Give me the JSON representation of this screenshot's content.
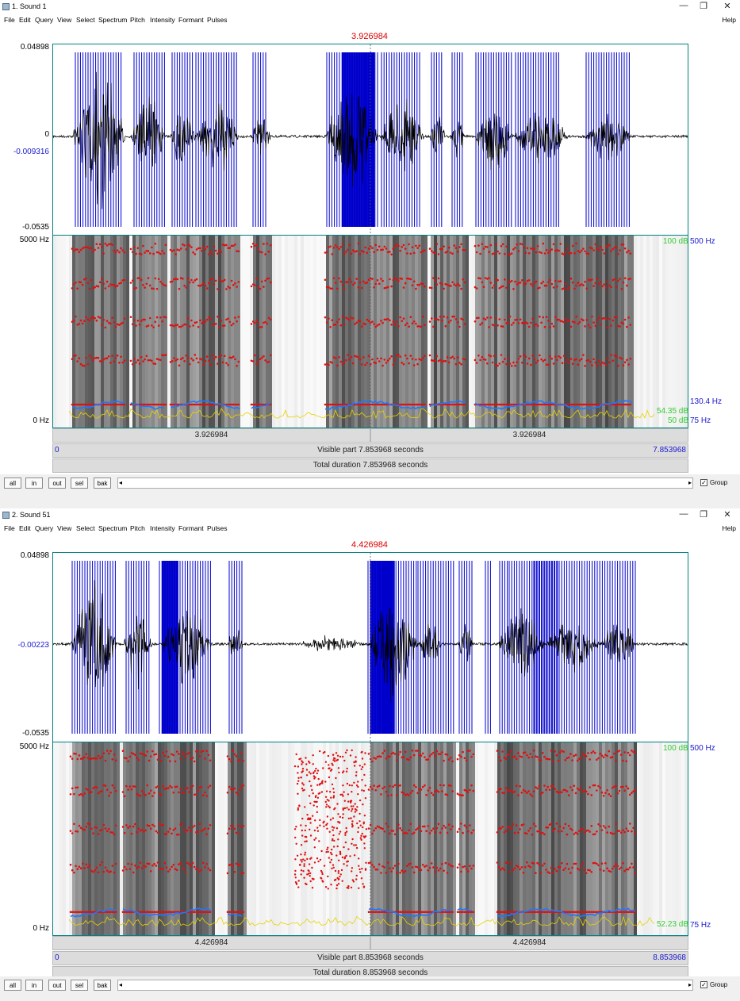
{
  "windows": [
    {
      "title": "1. Sound 1",
      "menu": [
        "File",
        "Edit",
        "Query",
        "View",
        "Select",
        "Spectrum",
        "Pitch",
        "Intensity",
        "Formant",
        "Pulses"
      ],
      "help": "Help",
      "cursor_time": "3.926984",
      "wave_top": "0.04898",
      "wave_zero": "0",
      "wave_cursor_val": "-0.009316",
      "wave_bottom": "-0.0535",
      "spec_top_hz": "5000 Hz",
      "spec_bottom_hz": "0 Hz",
      "intensity_top": "100 dB",
      "pitch_top": "500 Hz",
      "pitch_mid": "130.4 Hz",
      "intensity_mid": "54.35 dB",
      "intensity_bottom": "50 dB",
      "pitch_bottom": "75 Hz",
      "seg_left": "3.926984",
      "seg_right": "3.926984",
      "visible_start": "0",
      "visible_part": "Visible part 7.853968 seconds",
      "visible_end": "7.853968",
      "total_duration": "Total duration 7.853968 seconds"
    },
    {
      "title": "2. Sound 51",
      "menu": [
        "File",
        "Edit",
        "Query",
        "View",
        "Select",
        "Spectrum",
        "Pitch",
        "Intensity",
        "Formant",
        "Pulses"
      ],
      "help": "Help",
      "cursor_time": "4.426984",
      "wave_top": "0.04898",
      "wave_zero": "",
      "wave_cursor_val": "-0.00223",
      "wave_bottom": "-0.0535",
      "spec_top_hz": "5000 Hz",
      "spec_bottom_hz": "0 Hz",
      "intensity_top": "100 dB",
      "pitch_top": "500 Hz",
      "pitch_mid": "",
      "intensity_mid": "52.23 dB",
      "intensity_bottom": "",
      "pitch_bottom": "75 Hz",
      "seg_left": "4.426984",
      "seg_right": "4.426984",
      "visible_start": "0",
      "visible_part": "Visible part 8.853968 seconds",
      "visible_end": "8.853968",
      "total_duration": "Total duration 8.853968 seconds"
    }
  ],
  "buttons": {
    "all": "all",
    "in": "in",
    "out": "out",
    "sel": "sel",
    "bak": "bak"
  },
  "group_label": "Group",
  "group_checked": "✓",
  "colors": {
    "pulses": "#0000cc",
    "formants": "#e01010",
    "pitch": "#1e78ff",
    "intensity": "#e6d200",
    "cursor": "#d00000"
  },
  "icons": {
    "minimize": "—",
    "maximize": "❐",
    "close": "✕",
    "scroll_left": "◂",
    "scroll_right": "▸"
  }
}
